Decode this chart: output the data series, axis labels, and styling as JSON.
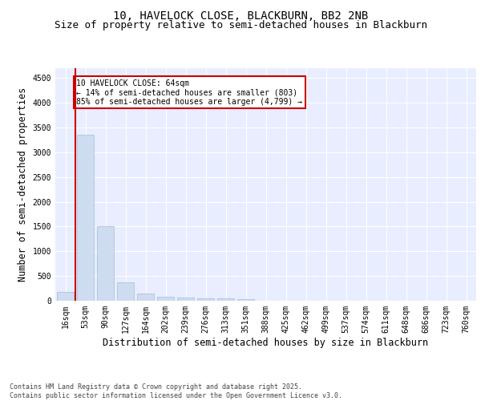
{
  "title1": "10, HAVELOCK CLOSE, BLACKBURN, BB2 2NB",
  "title2": "Size of property relative to semi-detached houses in Blackburn",
  "xlabel": "Distribution of semi-detached houses by size in Blackburn",
  "ylabel": "Number of semi-detached properties",
  "categories": [
    "16sqm",
    "53sqm",
    "90sqm",
    "127sqm",
    "164sqm",
    "202sqm",
    "239sqm",
    "276sqm",
    "313sqm",
    "351sqm",
    "388sqm",
    "425sqm",
    "462sqm",
    "499sqm",
    "537sqm",
    "574sqm",
    "611sqm",
    "648sqm",
    "686sqm",
    "723sqm",
    "760sqm"
  ],
  "values": [
    185,
    3360,
    1500,
    370,
    140,
    80,
    60,
    55,
    50,
    30,
    0,
    0,
    0,
    0,
    0,
    0,
    0,
    0,
    0,
    0,
    0
  ],
  "bar_color": "#cddcf0",
  "bar_edge_color": "#aabbd8",
  "vline_color": "#cc0000",
  "annotation_text": "10 HAVELOCK CLOSE: 64sqm\n← 14% of semi-detached houses are smaller (803)\n85% of semi-detached houses are larger (4,799) →",
  "annotation_box_color": "#cc0000",
  "ylim": [
    0,
    4700
  ],
  "yticks": [
    0,
    500,
    1000,
    1500,
    2000,
    2500,
    3000,
    3500,
    4000,
    4500
  ],
  "background_color": "#e8eeff",
  "footer_text": "Contains HM Land Registry data © Crown copyright and database right 2025.\nContains public sector information licensed under the Open Government Licence v3.0.",
  "title_fontsize": 10,
  "subtitle_fontsize": 9,
  "axis_fontsize": 8.5,
  "tick_fontsize": 7,
  "footer_fontsize": 6
}
